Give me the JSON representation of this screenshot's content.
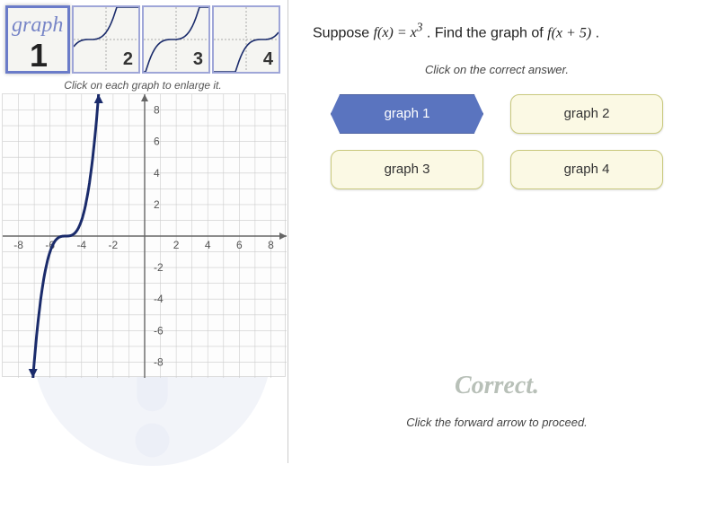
{
  "thumbs": {
    "instruction": "Click on each graph to enlarge it.",
    "items": [
      {
        "label": "1",
        "word": "graph",
        "selected": true
      },
      {
        "label": "2",
        "selected": false
      },
      {
        "label": "3",
        "selected": false
      },
      {
        "label": "4",
        "selected": false
      }
    ]
  },
  "main_graph": {
    "xmin": -9,
    "xmax": 9,
    "ymin": -9,
    "ymax": 9,
    "tick_step": 2,
    "tick_labels_x": [
      -8,
      -6,
      -4,
      -2,
      2,
      4,
      6,
      8
    ],
    "tick_labels_y": [
      -8,
      -6,
      -4,
      -2,
      2,
      4,
      6,
      8
    ],
    "grid_color": "#cccccc",
    "axis_color": "#666666",
    "curve_color": "#1a2b6b",
    "curve_width": 3,
    "curve_points_shift": -5,
    "background": "#fdfdfd"
  },
  "question": {
    "prefix": "Suppose ",
    "fn": "f(x) = x",
    "exp": "3",
    "mid": " . Find the graph of ",
    "fn2": "f(x + 5)",
    "suffix": " .",
    "click_line": "Click on the correct answer."
  },
  "answers": {
    "items": [
      {
        "label": "graph 1",
        "selected": true
      },
      {
        "label": "graph 2",
        "selected": false
      },
      {
        "label": "graph 3",
        "selected": false
      },
      {
        "label": "graph 4",
        "selected": false
      }
    ]
  },
  "feedback": {
    "correct": "Correct.",
    "proceed": "Click the forward arrow to proceed."
  },
  "colors": {
    "thumb_border": "#9fa6d8",
    "thumb_selected": "#6b7cc9",
    "btn_bg": "#fbf9e4",
    "btn_border": "#c9c97d",
    "btn_selected_bg": "#5a74bf",
    "correct_text": "#b8c0b8",
    "bg_shape": "#c7cee8"
  }
}
